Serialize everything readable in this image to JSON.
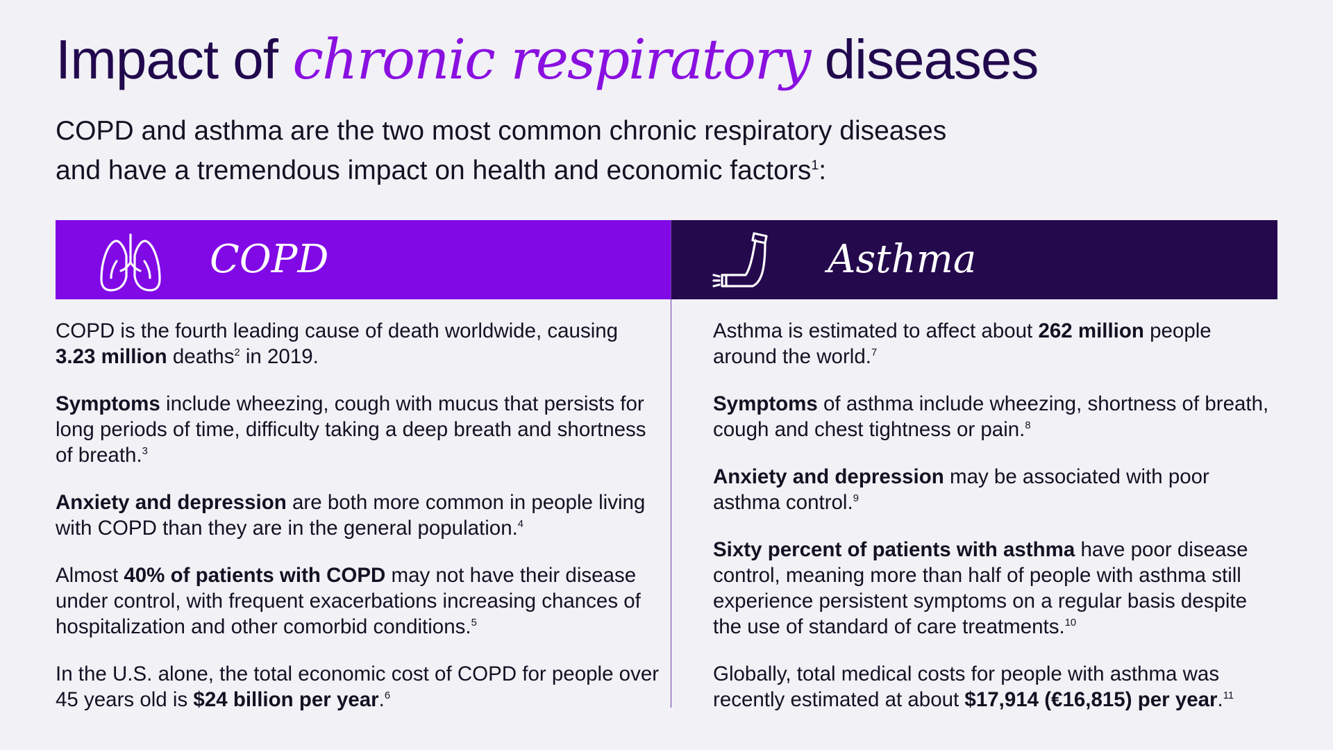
{
  "title": {
    "part1": "Impact of ",
    "accent": "chronic respiratory",
    "part2": " diseases"
  },
  "subtitle": {
    "line1": "COPD and asthma are the two most common chronic respiratory diseases",
    "line2": "and have a tremendous impact on health and economic factors",
    "sup": "1",
    "end": ":"
  },
  "colors": {
    "copd_header": "#8109e6",
    "asthma_header": "#25094d",
    "title_accent": "#8a10e0",
    "title": "#21094d",
    "background": "#f1f1f6"
  },
  "copd": {
    "header_label": "COPD",
    "icon": "lungs-icon",
    "p1": {
      "a": "COPD is the fourth leading cause of death worldwide, causing ",
      "b": "3.23 million",
      "c": " deaths",
      "sup1": "2",
      "d": " in 2019."
    },
    "p2": {
      "b": "Symptoms",
      "a": " include wheezing, cough with mucus that persists for long periods of time, difficulty taking a deep breath and shortness of breath.",
      "sup": "3"
    },
    "p3": {
      "b": "Anxiety and depression",
      "a": " are both more common in people living with COPD than they are in the general population.",
      "sup": "4"
    },
    "p4": {
      "a": "Almost ",
      "b": "40% of patients with COPD",
      "c": " may not have their disease under control, with frequent exacerbations increasing chances of hospitalization and other comorbid conditions.",
      "sup": "5"
    },
    "p5": {
      "a": "In the U.S. alone, the total economic cost of COPD for people over 45 years old is ",
      "b": "$24 billion per year",
      "c": ".",
      "sup": "6"
    }
  },
  "asthma": {
    "header_label": "Asthma",
    "icon": "inhaler-icon",
    "p1": {
      "a": "Asthma is estimated to affect about ",
      "b": "262 million",
      "c": " people around the world.",
      "sup": "7"
    },
    "p2": {
      "b": "Symptoms",
      "a": " of asthma include wheezing, shortness of breath, cough and chest tightness or pain.",
      "sup": "8"
    },
    "p3": {
      "b": "Anxiety and depression",
      "a": " may be associated with poor asthma control.",
      "sup": "9"
    },
    "p4": {
      "b": "Sixty percent of patients with asthma",
      "a": " have poor disease control, meaning more than half of people with asthma still experience persistent symptoms on a regular basis despite the use of standard of care treatments.",
      "sup": "10"
    },
    "p5": {
      "a": "Globally, total medical costs for people with asthma was recently estimated at about ",
      "b": "$17,914 (€16,815) per year",
      "c": ".",
      "sup": "11"
    }
  }
}
